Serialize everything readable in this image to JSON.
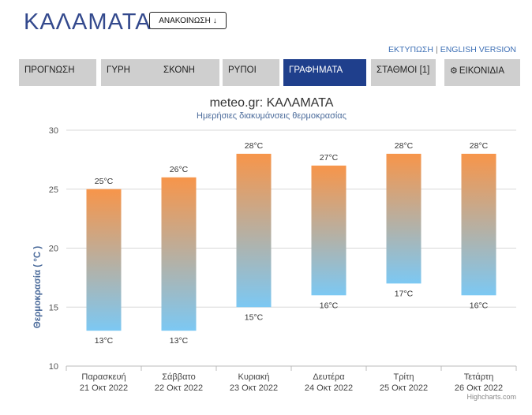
{
  "header": {
    "city": "ΚΑΛΑΜΑΤΑ",
    "announce_label": "ΑΝΑΚΟΙΝΩΣΗ",
    "announce_icon": "arrow-down-icon"
  },
  "top_links": {
    "print": "ΕΚΤΥΠΩΣΗ",
    "separator": "|",
    "english": "ENGLISH VERSION"
  },
  "tabs": [
    {
      "label": "ΠΡΟΓΝΩΣΗ",
      "active": false
    },
    {
      "label": "ΓΥΡΗ",
      "active": false
    },
    {
      "label": "ΣΚΟΝΗ",
      "active": false
    },
    {
      "label": "ΡΥΠΟΙ",
      "active": false
    },
    {
      "label": "ΓΡΑΦΗΜΑΤΑ",
      "active": true
    },
    {
      "label": "ΣΤΑΘΜΟΙ [1]",
      "active": false
    },
    {
      "label": "ΕΙΚΟΝΙΔΙΑ",
      "active": false,
      "icon": "gear-icon"
    }
  ],
  "colors": {
    "accent": "#1f3f8c",
    "bar_top": "#f7954a",
    "bar_bottom": "#7cc8f3"
  },
  "chart_data": {
    "type": "bar",
    "title": "meteo.gr: ΚΑΛΑΜΑΤΑ",
    "subtitle": "Ημερήσιες διακυμάνσεις θερμοκρασίας",
    "ylabel": "Θερμοκρασία ( °C )",
    "ylim": [
      10,
      30
    ],
    "yticks": [
      "10",
      "15",
      "20",
      "25",
      "30"
    ],
    "categories": [
      {
        "day": "Παρασκευή",
        "date": "21 Οκτ 2022"
      },
      {
        "day": "Σάββατο",
        "date": "22 Οκτ 2022"
      },
      {
        "day": "Κυριακή",
        "date": "23 Οκτ 2022"
      },
      {
        "day": "Δευτέρα",
        "date": "24 Οκτ 2022"
      },
      {
        "day": "Τρίτη",
        "date": "25 Οκτ 2022"
      },
      {
        "day": "Τετάρτη",
        "date": "26 Οκτ 2022"
      }
    ],
    "low": [
      13,
      13,
      15,
      16,
      17,
      16
    ],
    "high": [
      25,
      26,
      28,
      27,
      28,
      28
    ],
    "low_labels": [
      "13°C",
      "13°C",
      "15°C",
      "16°C",
      "17°C",
      "16°C"
    ],
    "high_labels": [
      "25°C",
      "26°C",
      "28°C",
      "27°C",
      "28°C",
      "28°C"
    ],
    "grid": true,
    "legend": "none",
    "credits": "Highcharts.com"
  }
}
